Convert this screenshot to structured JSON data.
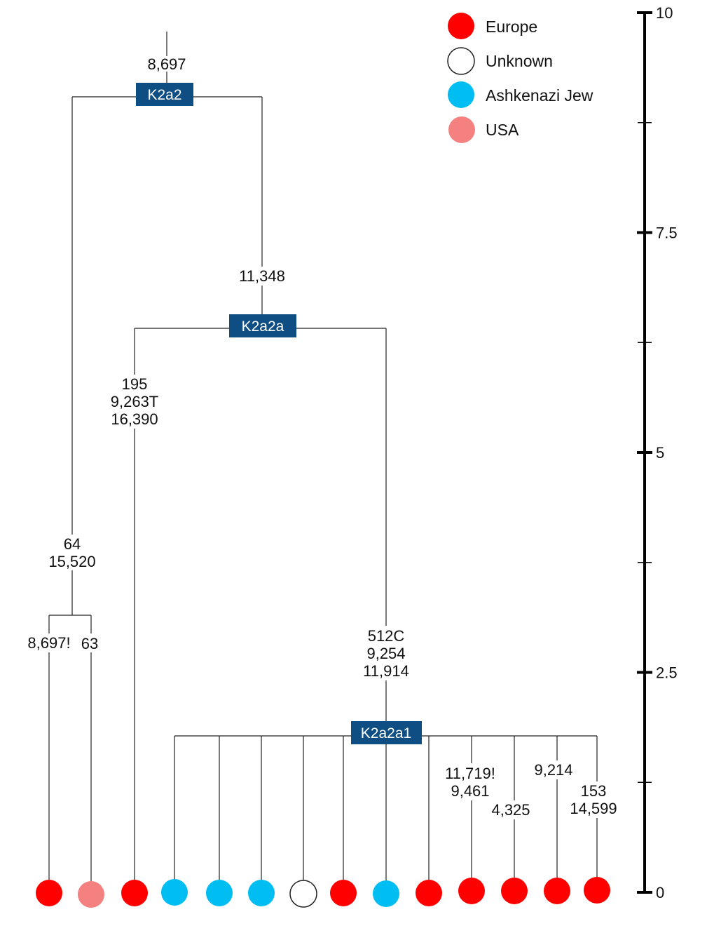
{
  "colors": {
    "europe": "#ff0000",
    "unknown": "#ffffff",
    "ashkenazi_jew": "#00bdf2",
    "usa": "#f48080",
    "haplogroup_box": "#0e4e82"
  },
  "legend": [
    {
      "label": "Europe",
      "color_key": "europe"
    },
    {
      "label": "Unknown",
      "color_key": "unknown"
    },
    {
      "label": "Ashkenazi Jew",
      "color_key": "ashkenazi_jew"
    },
    {
      "label": "USA",
      "color_key": "usa"
    }
  ],
  "scale": {
    "min": 0,
    "max": 10,
    "major_ticks": [
      0,
      2.5,
      5,
      7.5,
      10
    ],
    "minor_ticks": [
      1.25,
      3.75,
      6.25,
      8.75
    ],
    "tick_labels": [
      "0",
      "2.5",
      "5",
      "7.5",
      "10"
    ]
  },
  "haplogroups": {
    "k2a2": "K2a2",
    "k2a2a": "K2a2a",
    "k2a2a1": "K2a2a1"
  },
  "mutations": {
    "root": [
      "8,697"
    ],
    "k2a2_left": [
      "64",
      "15,520"
    ],
    "k2a2_left_a": [
      "8,697!"
    ],
    "k2a2_left_b": [
      "63"
    ],
    "k2a2a_stem": [
      "11,348"
    ],
    "k2a2a_left": [
      "195",
      "9,263T",
      "16,390"
    ],
    "k2a2a1_stem": [
      "512C",
      "9,254",
      "11,914"
    ],
    "k2a2a1_leaf10": [
      "11,719!",
      "9,461"
    ],
    "k2a2a1_leaf11": [
      "4,325"
    ],
    "k2a2a1_leaf12": [
      "9,214"
    ],
    "k2a2a1_leaf13": [
      "153",
      "14,599"
    ]
  },
  "leaves": [
    {
      "origin": "europe"
    },
    {
      "origin": "usa"
    },
    {
      "origin": "europe"
    },
    {
      "origin": "ashkenazi_jew"
    },
    {
      "origin": "ashkenazi_jew"
    },
    {
      "origin": "ashkenazi_jew"
    },
    {
      "origin": "unknown"
    },
    {
      "origin": "europe"
    },
    {
      "origin": "ashkenazi_jew"
    },
    {
      "origin": "europe"
    },
    {
      "origin": "europe"
    },
    {
      "origin": "europe"
    },
    {
      "origin": "europe"
    },
    {
      "origin": "europe"
    }
  ]
}
